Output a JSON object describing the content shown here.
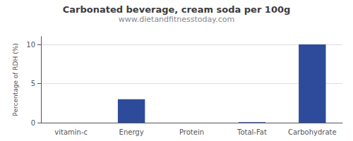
{
  "chart_data": {
    "type": "bar",
    "title": "Carbonated beverage, cream soda per 100g",
    "subtitle": "www.dietandfitnesstoday.com",
    "categories": [
      "vitamin-c",
      "Energy",
      "Protein",
      "Total-Fat",
      "Carbohydrate"
    ],
    "values": [
      0,
      3.0,
      0,
      0.07,
      10.0
    ],
    "color": "#2e4b9b",
    "ylabel": "Percentage of RDH (%)",
    "ylim": [
      0,
      11
    ],
    "yticks": [
      0,
      5,
      10
    ],
    "grid": true
  }
}
